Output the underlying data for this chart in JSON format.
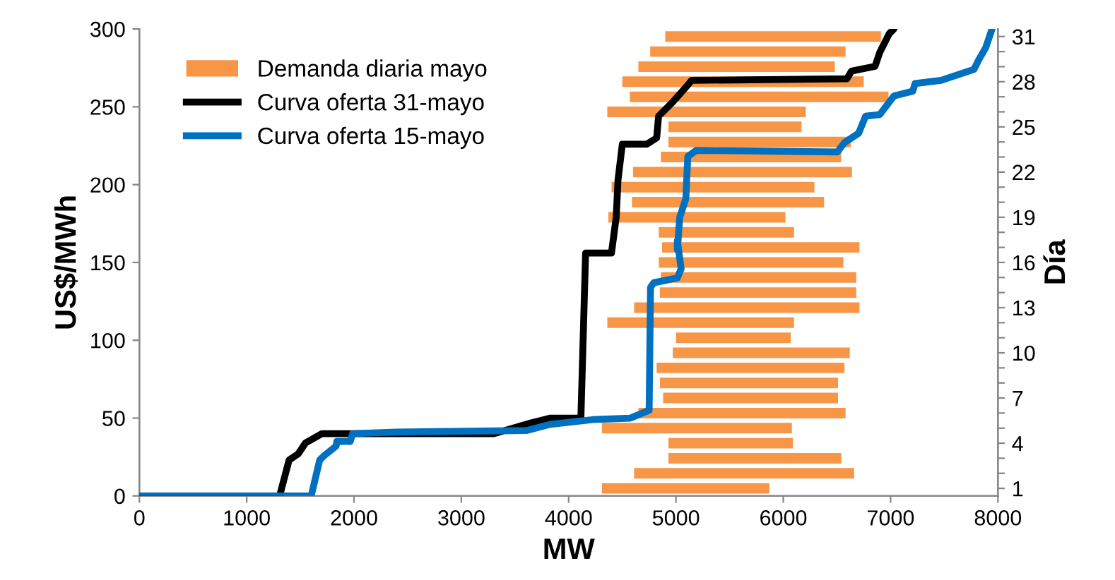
{
  "chart_data": [
    {
      "type": "line",
      "xlabel": "MW",
      "ylabel": "US$/MWh",
      "xlim": [
        0,
        8000
      ],
      "xticks": [
        0,
        1000,
        2000,
        3000,
        4000,
        5000,
        6000,
        7000,
        8000
      ],
      "ylim": [
        0,
        300
      ],
      "yticks": [
        0,
        50,
        100,
        150,
        200,
        250,
        300
      ],
      "grid": false,
      "legend": "top left",
      "marker": "none",
      "line_style": "solid",
      "series": [
        {
          "name": "Curva oferta 31-mayo",
          "color": "#000000",
          "x": [
            0,
            1307,
            1395,
            1480,
            1548,
            1702,
            3303,
            3654,
            3830,
            4114,
            4158,
            4399,
            4443,
            4460,
            4500,
            4728,
            4820,
            4838,
            4969,
            5110,
            5146,
            6592,
            6636,
            6855,
            6899,
            6987,
            7031
          ],
          "values": [
            0,
            0,
            23,
            27,
            34,
            40,
            40,
            47,
            50,
            50,
            156,
            156,
            179,
            203,
            226,
            226,
            230,
            244,
            253,
            264,
            267,
            268,
            273,
            276,
            285,
            297,
            300
          ]
        },
        {
          "name": "Curva oferta 15-mayo",
          "color": "#0070c0",
          "x": [
            0,
            1601,
            1680,
            1724,
            1833,
            1840,
            1965,
            1987,
            2382,
            3609,
            3829,
            4224,
            4575,
            4750,
            4763,
            4794,
            5013,
            5048,
            5013,
            5013,
            5035,
            5092,
            5110,
            5188,
            6504,
            6570,
            6702,
            6767,
            6899,
            7031,
            7206,
            7228,
            7470,
            7776,
            7820,
            7886,
            7945
          ],
          "values": [
            0,
            0,
            23,
            26,
            32,
            35,
            35,
            40,
            41,
            42,
            46,
            49,
            50,
            55,
            134,
            137,
            140,
            146,
            164,
            158,
            179,
            191,
            218,
            222,
            221,
            227,
            233,
            244,
            245,
            257,
            260,
            265,
            267,
            274,
            280,
            288,
            300
          ]
        }
      ]
    },
    {
      "type": "bar",
      "orientation": "horizontal",
      "ylabel": "Día",
      "legend": "top left",
      "tick_labels": "y",
      "categories": [
        "31",
        null,
        null,
        "28",
        null,
        null,
        "25",
        null,
        null,
        "22",
        null,
        null,
        "19",
        null,
        null,
        "16",
        null,
        null,
        "13",
        null,
        null,
        "10",
        null,
        null,
        "7",
        null,
        null,
        "4",
        null,
        null,
        "1"
      ],
      "xlim": [
        0,
        8000
      ],
      "xticks": [
        0,
        1000,
        2000,
        3000,
        4000,
        5000,
        6000,
        7000,
        8000
      ],
      "series": [
        {
          "name": "Demanda diaria mayo",
          "color": "#f79646",
          "base": [
            4900,
            4760,
            4650,
            4500,
            4570,
            4360,
            4930,
            4930,
            4860,
            4600,
            4400,
            4590,
            4370,
            4840,
            4870,
            4840,
            4860,
            4850,
            4610,
            4360,
            5000,
            4970,
            4820,
            4850,
            4880,
            4650,
            4310,
            4930,
            4930,
            4610,
            4310
          ],
          "values": [
            2010,
            1820,
            1830,
            2250,
            2410,
            1850,
            1240,
            1700,
            1680,
            2040,
            1890,
            1790,
            1650,
            1260,
            1840,
            1720,
            1820,
            1830,
            2100,
            1740,
            1070,
            1650,
            1750,
            1660,
            1630,
            1930,
            1770,
            1160,
            1610,
            2050,
            1560
          ]
        }
      ]
    }
  ]
}
